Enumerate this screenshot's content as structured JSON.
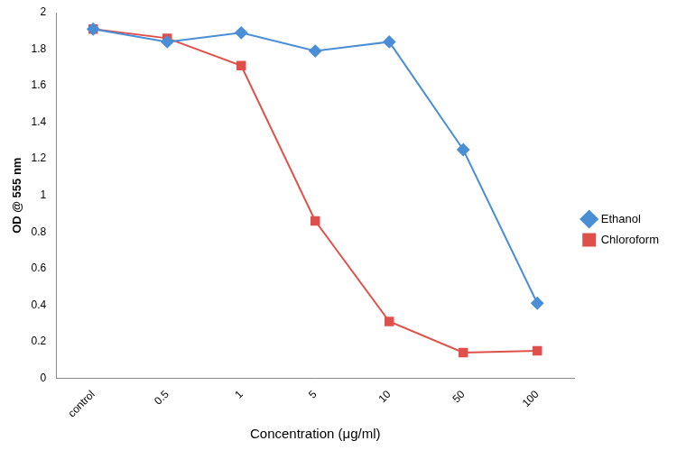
{
  "chart_data": {
    "type": "line",
    "x_label": "Concentration (μg/ml)",
    "y_label": "OD @ 555 nm",
    "categories": [
      "control",
      "0.5",
      "1",
      "5",
      "10",
      "50",
      "100"
    ],
    "series": [
      {
        "name": "Ethanol",
        "color": "#4a8fd6",
        "marker": "diamond",
        "line_style": "solid",
        "values": [
          1.91,
          1.84,
          1.89,
          1.79,
          1.84,
          1.25,
          0.41
        ]
      },
      {
        "name": "Chloroform",
        "color": "#e0504a",
        "marker": "square",
        "line_style": "solid",
        "values": [
          1.91,
          1.86,
          1.71,
          0.86,
          0.31,
          0.14,
          0.15
        ]
      }
    ],
    "ylim": [
      0,
      2
    ],
    "yticks": [
      0,
      0.2,
      0.4,
      0.6,
      0.8,
      1,
      1.2,
      1.4,
      1.6,
      1.8,
      2
    ],
    "grid": false,
    "legend": "right"
  }
}
